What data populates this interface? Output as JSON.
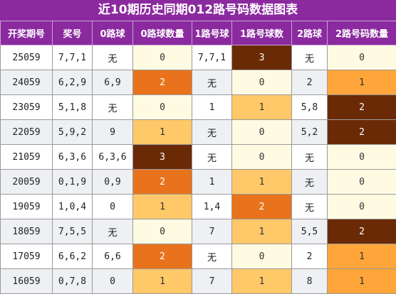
{
  "title": "近10期历史同期012路号码数据图表",
  "headers": [
    "开奖期号",
    "奖号",
    "0路球",
    "0路球数量",
    "1路号球",
    "1路号球数",
    "2路球",
    "2路号码数量"
  ],
  "colors": {
    "header_bg": "#8b2a9f",
    "count_3": "#6b2a06",
    "count_2_orange": "#e8731c",
    "count_1_light": "#ffc868",
    "count_1_bright": "#ffa53a",
    "count_0": "#fffbe3"
  },
  "rows": [
    {
      "period": "25059",
      "number": "7,7,1",
      "r0": "无",
      "r0_count": "0",
      "r1": "7,7,1",
      "r1_count": "3",
      "r2": "无",
      "r2_count": "0"
    },
    {
      "period": "24059",
      "number": "6,2,9",
      "r0": "6,9",
      "r0_count": "2",
      "r1": "无",
      "r1_count": "0",
      "r2": "2",
      "r2_count": "1"
    },
    {
      "period": "23059",
      "number": "5,1,8",
      "r0": "无",
      "r0_count": "0",
      "r1": "1",
      "r1_count": "1",
      "r2": "5,8",
      "r2_count": "2"
    },
    {
      "period": "22059",
      "number": "5,9,2",
      "r0": "9",
      "r0_count": "1",
      "r1": "无",
      "r1_count": "0",
      "r2": "5,2",
      "r2_count": "2"
    },
    {
      "period": "21059",
      "number": "6,3,6",
      "r0": "6,3,6",
      "r0_count": "3",
      "r1": "无",
      "r1_count": "0",
      "r2": "无",
      "r2_count": "0"
    },
    {
      "period": "20059",
      "number": "0,1,9",
      "r0": "0,9",
      "r0_count": "2",
      "r1": "1",
      "r1_count": "1",
      "r2": "无",
      "r2_count": "0"
    },
    {
      "period": "19059",
      "number": "1,0,4",
      "r0": "0",
      "r0_count": "1",
      "r1": "1,4",
      "r1_count": "2",
      "r2": "无",
      "r2_count": "0"
    },
    {
      "period": "18059",
      "number": "7,5,5",
      "r0": "无",
      "r0_count": "0",
      "r1": "7",
      "r1_count": "1",
      "r2": "5,5",
      "r2_count": "2"
    },
    {
      "period": "17059",
      "number": "6,6,2",
      "r0": "6,6",
      "r0_count": "2",
      "r1": "无",
      "r1_count": "0",
      "r2": "2",
      "r2_count": "1"
    },
    {
      "period": "16059",
      "number": "0,7,8",
      "r0": "0",
      "r0_count": "1",
      "r1": "7",
      "r1_count": "1",
      "r2": "8",
      "r2_count": "1"
    }
  ]
}
